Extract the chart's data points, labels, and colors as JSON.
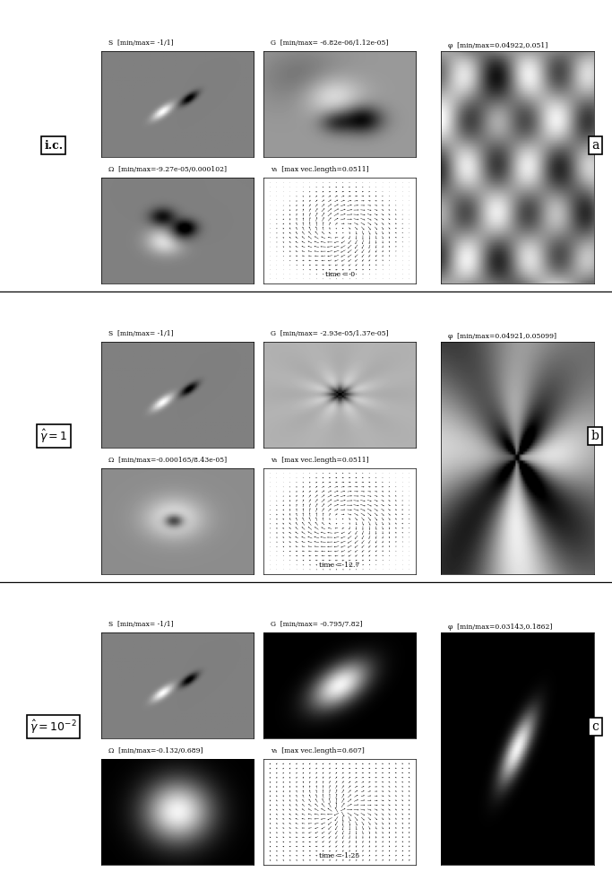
{
  "panels": [
    {
      "row_label": "i.c.",
      "panel_letter": "a",
      "S_label": "S  [min/max= -1/1]",
      "G_label": "G  [min/max= -6.82e-06/1.12e-05]",
      "phi_label": "φ  [min/max=0.04922,0.051]",
      "omega_label": "Ω  [min/max=-9.27e-05/0.000102]",
      "vh_label": "vₕ  [max vec.length=0.0511]",
      "time_label": "time = 0",
      "S_type": "dipole_gray_a",
      "G_type": "quadrupole_gray_a",
      "phi_type": "wavy_gray_a",
      "omega_type": "vortex_gray_a",
      "vh_type": "quiver_a",
      "phi_label_side": "right_top"
    },
    {
      "row_label": "$\\hat{\\gamma} = 1$",
      "panel_letter": "b",
      "S_label": "S  [min/max= -1/1]",
      "G_label": "G  [min/max= -2.93e-05/1.37e-05]",
      "phi_label": "φ  [min/max=0.04921,0.05099]",
      "omega_label": "Ω  [min/max=-0.000165/8.43e-05]",
      "vh_label": "vₕ  [max vec.length=0.0511]",
      "time_label": "time = 12.7",
      "S_type": "dipole_gray_b",
      "G_type": "quadrupole_gray_b",
      "phi_type": "wavy_gray_b",
      "omega_type": "vortex_gray_b",
      "vh_type": "quiver_b",
      "phi_label_side": "right_mid"
    },
    {
      "row_label": "$\\hat{\\gamma} = 10^{-2}$",
      "panel_letter": "c",
      "S_label": "S  [min/max= -1/1]",
      "G_label": "G  [min/max= -0.795/7.82]",
      "phi_label": "φ  [min/max=0.03143,0.1862]",
      "omega_label": "Ω  [min/max=-0.132/0.689]",
      "vh_label": "vₕ  [max vec.length=0.607]",
      "time_label": "time = 1.25",
      "S_type": "dipole_gray_c",
      "G_type": "blob_dark_c",
      "phi_type": "blob_dark_phi_c",
      "omega_type": "blob_bright_c",
      "vh_type": "quiver_c",
      "phi_label_side": "right_top"
    }
  ],
  "fig_width": 6.83,
  "fig_height": 9.72,
  "bg_color": "#ffffff",
  "label_fontsize": 5.5,
  "rowlabel_fontsize": 9,
  "letter_fontsize": 10
}
